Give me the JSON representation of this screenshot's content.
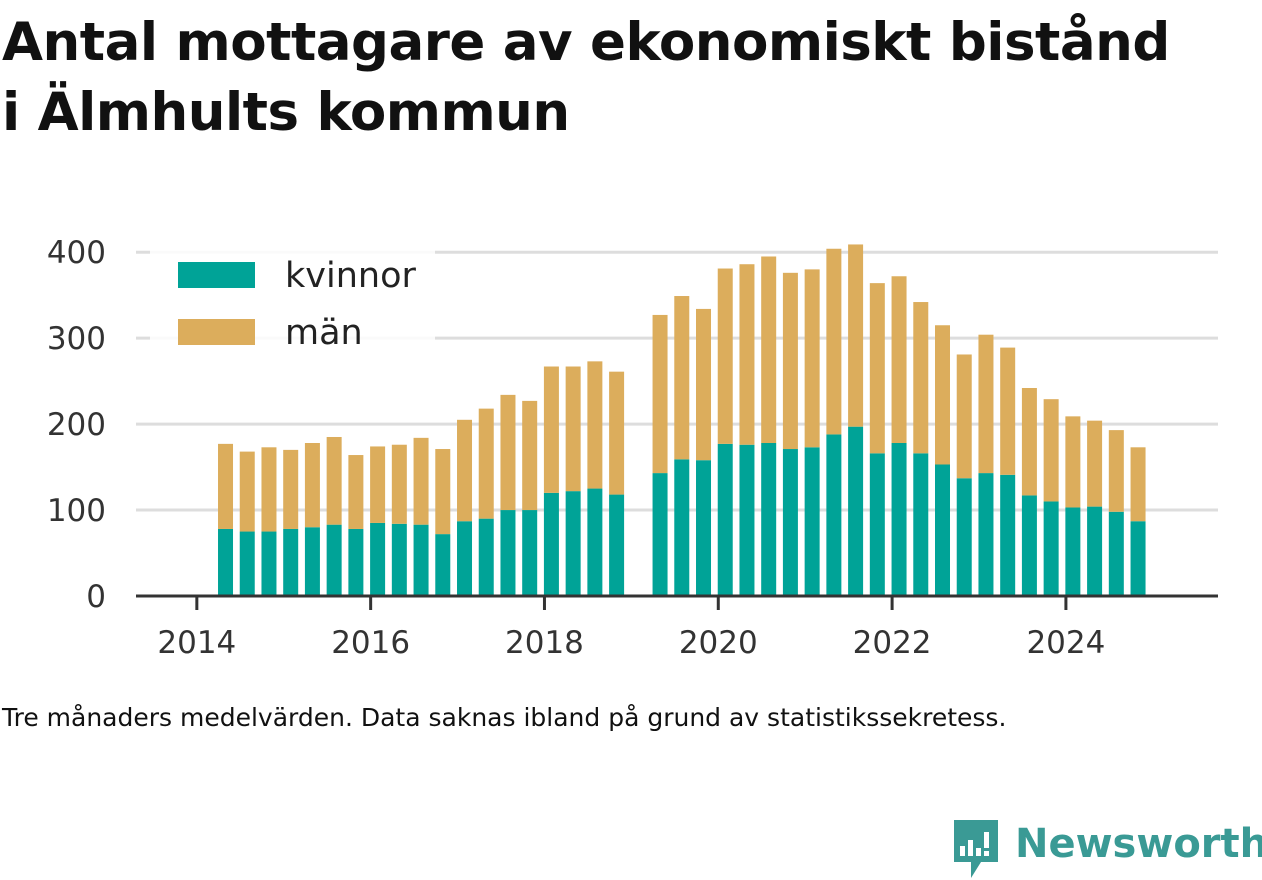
{
  "title": {
    "line1": "Antal mottagare av ekonomiskt bistånd",
    "line2": "i Älmhults kommun"
  },
  "caption": "Tre månaders medelvärden. Data saknas ibland på grund av statistikssekretess.",
  "brand": {
    "name": "Newsworthy",
    "icon": "newsworthy-logo-icon",
    "color": "#3a9a95"
  },
  "chart_data": {
    "type": "bar",
    "stacked": true,
    "title": "",
    "xlabel": "",
    "ylabel": "",
    "ylim": [
      0,
      420
    ],
    "xlim": [
      2013.3,
      2025.75
    ],
    "yticks": [
      0,
      100,
      200,
      300,
      400
    ],
    "xticks": [
      2014,
      2016,
      2018,
      2020,
      2022,
      2024
    ],
    "grid": true,
    "legend_position": "top-left",
    "x": [
      2014.33,
      2014.58,
      2014.83,
      2015.08,
      2015.33,
      2015.58,
      2015.83,
      2016.08,
      2016.33,
      2016.58,
      2016.83,
      2017.08,
      2017.33,
      2017.58,
      2017.83,
      2018.08,
      2018.33,
      2018.58,
      2018.83,
      2019.33,
      2019.58,
      2019.83,
      2020.08,
      2020.33,
      2020.58,
      2020.83,
      2021.08,
      2021.33,
      2021.58,
      2021.83,
      2022.08,
      2022.33,
      2022.58,
      2022.83,
      2023.08,
      2023.33,
      2023.58,
      2023.83,
      2024.08,
      2024.33,
      2024.58,
      2024.83
    ],
    "series": [
      {
        "name": "kvinnor",
        "color": "#00a397",
        "values": [
          78,
          75,
          75,
          78,
          80,
          83,
          78,
          85,
          84,
          83,
          72,
          87,
          90,
          100,
          100,
          120,
          122,
          125,
          118,
          143,
          159,
          158,
          177,
          176,
          178,
          171,
          173,
          188,
          197,
          166,
          178,
          166,
          153,
          137,
          143,
          141,
          117,
          110,
          103,
          104,
          98,
          87
        ]
      },
      {
        "name": "män",
        "color": "#dcad5c",
        "values": [
          99,
          93,
          98,
          92,
          98,
          102,
          86,
          89,
          92,
          101,
          99,
          118,
          128,
          134,
          127,
          147,
          145,
          148,
          143,
          184,
          190,
          176,
          204,
          210,
          217,
          205,
          207,
          216,
          212,
          198,
          194,
          176,
          162,
          144,
          161,
          148,
          125,
          119,
          106,
          100,
          95,
          86
        ]
      }
    ]
  }
}
